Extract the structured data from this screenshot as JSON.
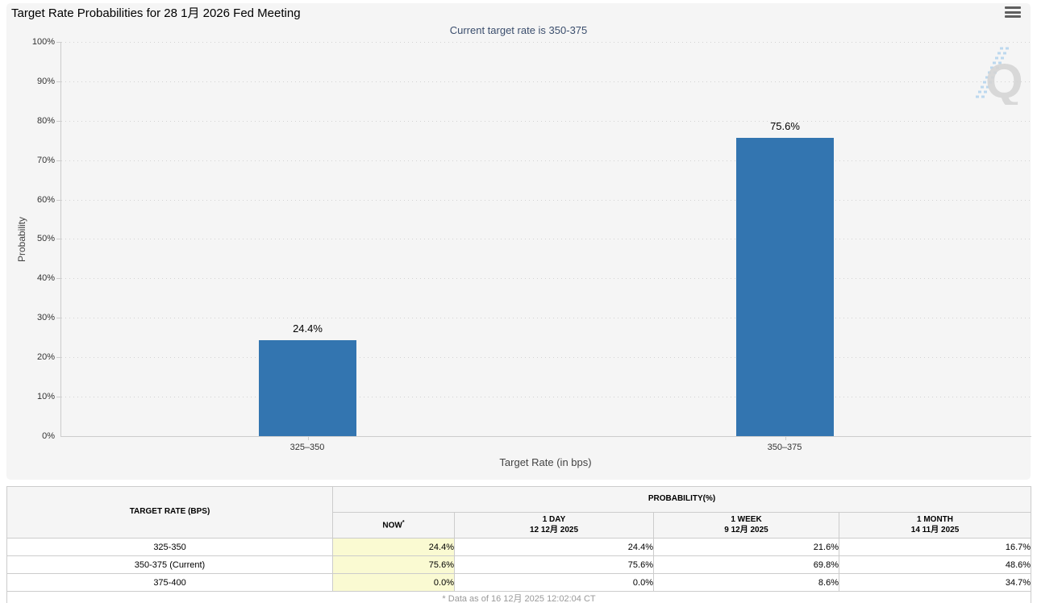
{
  "header": {
    "title": "Target Rate Probabilities for 28 1月 2026 Fed Meeting"
  },
  "chart": {
    "subtitle": "Current target rate is 350-375",
    "ylabel": "Probability",
    "xlabel": "Target Rate (in bps)",
    "yticks": [
      "100%",
      "90%",
      "80%",
      "70%",
      "60%",
      "50%",
      "40%",
      "30%",
      "20%",
      "10%",
      "0%"
    ],
    "watermark_letter": "Q"
  },
  "chart_data": {
    "type": "bar",
    "title": "Target Rate Probabilities for 28 1月 2026 Fed Meeting",
    "subtitle": "Current target rate is 350-375",
    "categories": [
      "325–350",
      "350–375"
    ],
    "values": [
      24.4,
      75.6
    ],
    "value_labels": [
      "24.4%",
      "75.6%"
    ],
    "xlabel": "Target Rate (in bps)",
    "ylabel": "Probability",
    "ylim": [
      0,
      100
    ],
    "ytick_step": 10,
    "grid": "dotted-horizontal",
    "legend": "none",
    "bar_color": "#3375b0"
  },
  "table": {
    "target_rate_header": "TARGET RATE (BPS)",
    "probability_header": "PROBABILITY(%)",
    "now_label": "NOW",
    "now_asterisk": "*",
    "col_1day_label": "1 DAY",
    "col_1day_date": "12 12月 2025",
    "col_1week_label": "1 WEEK",
    "col_1week_date": "9 12月 2025",
    "col_1month_label": "1 MONTH",
    "col_1month_date": "14 11月 2025",
    "rows": [
      {
        "rate": "325-350",
        "now": "24.4%",
        "day1": "24.4%",
        "week1": "21.6%",
        "month1": "16.7%"
      },
      {
        "rate": "350-375 (Current)",
        "now": "75.6%",
        "day1": "75.6%",
        "week1": "69.8%",
        "month1": "48.6%"
      },
      {
        "rate": "375-400",
        "now": "0.0%",
        "day1": "0.0%",
        "week1": "8.6%",
        "month1": "34.7%"
      }
    ],
    "footnote": "* Data as of 16 12月 2025 12:02:04 CT"
  },
  "colors": {
    "bar": "#3375b0",
    "subtitle_text": "#3b4e6d",
    "card_bg": "#f5f5f5",
    "now_cell_bg": "#fafad2",
    "border": "#cccccc"
  }
}
